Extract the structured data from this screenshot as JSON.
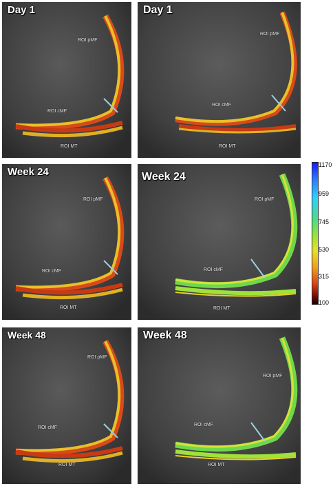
{
  "panels": [
    {
      "title": "Day 1",
      "roi_pmf": "ROI  pMF",
      "roi_cmf": "ROI  cMF",
      "roi_mt": "ROI  MT"
    },
    {
      "title": "Day 1",
      "roi_pmf": "ROI  pMF",
      "roi_cmf": "ROI  cMF",
      "roi_mt": "ROI  MT"
    },
    {
      "title": "Week 24",
      "roi_pmf": "ROI  pMF",
      "roi_cmf": "ROI  cMF",
      "roi_mt": "ROI  MT"
    },
    {
      "title": "Week 24",
      "roi_pmf": "ROI pMF",
      "roi_cmf": "ROI cMF",
      "roi_mt": "ROI  MT"
    },
    {
      "title": "Week 48",
      "roi_pmf": "ROI  pMF",
      "roi_cmf": "ROI  cMF",
      "roi_mt": "ROI  MT"
    },
    {
      "title": "Week 48",
      "roi_pmf": "ROI pMF",
      "roi_cmf": "ROI cMF",
      "roi_mt": "ROI MT"
    }
  ],
  "colorbar": {
    "ticks": [
      "1170",
      "959",
      "745",
      "530",
      "315",
      "100"
    ],
    "colors": {
      "top": "#1a1aff",
      "middle": "#4ddc8a",
      "upper_mid": "#e8e02a",
      "bottom": "#1a0000"
    }
  },
  "overlay_colors": {
    "red_orange": "#d8401a",
    "yellow": "#e8d02a",
    "green": "#7ee04a"
  }
}
